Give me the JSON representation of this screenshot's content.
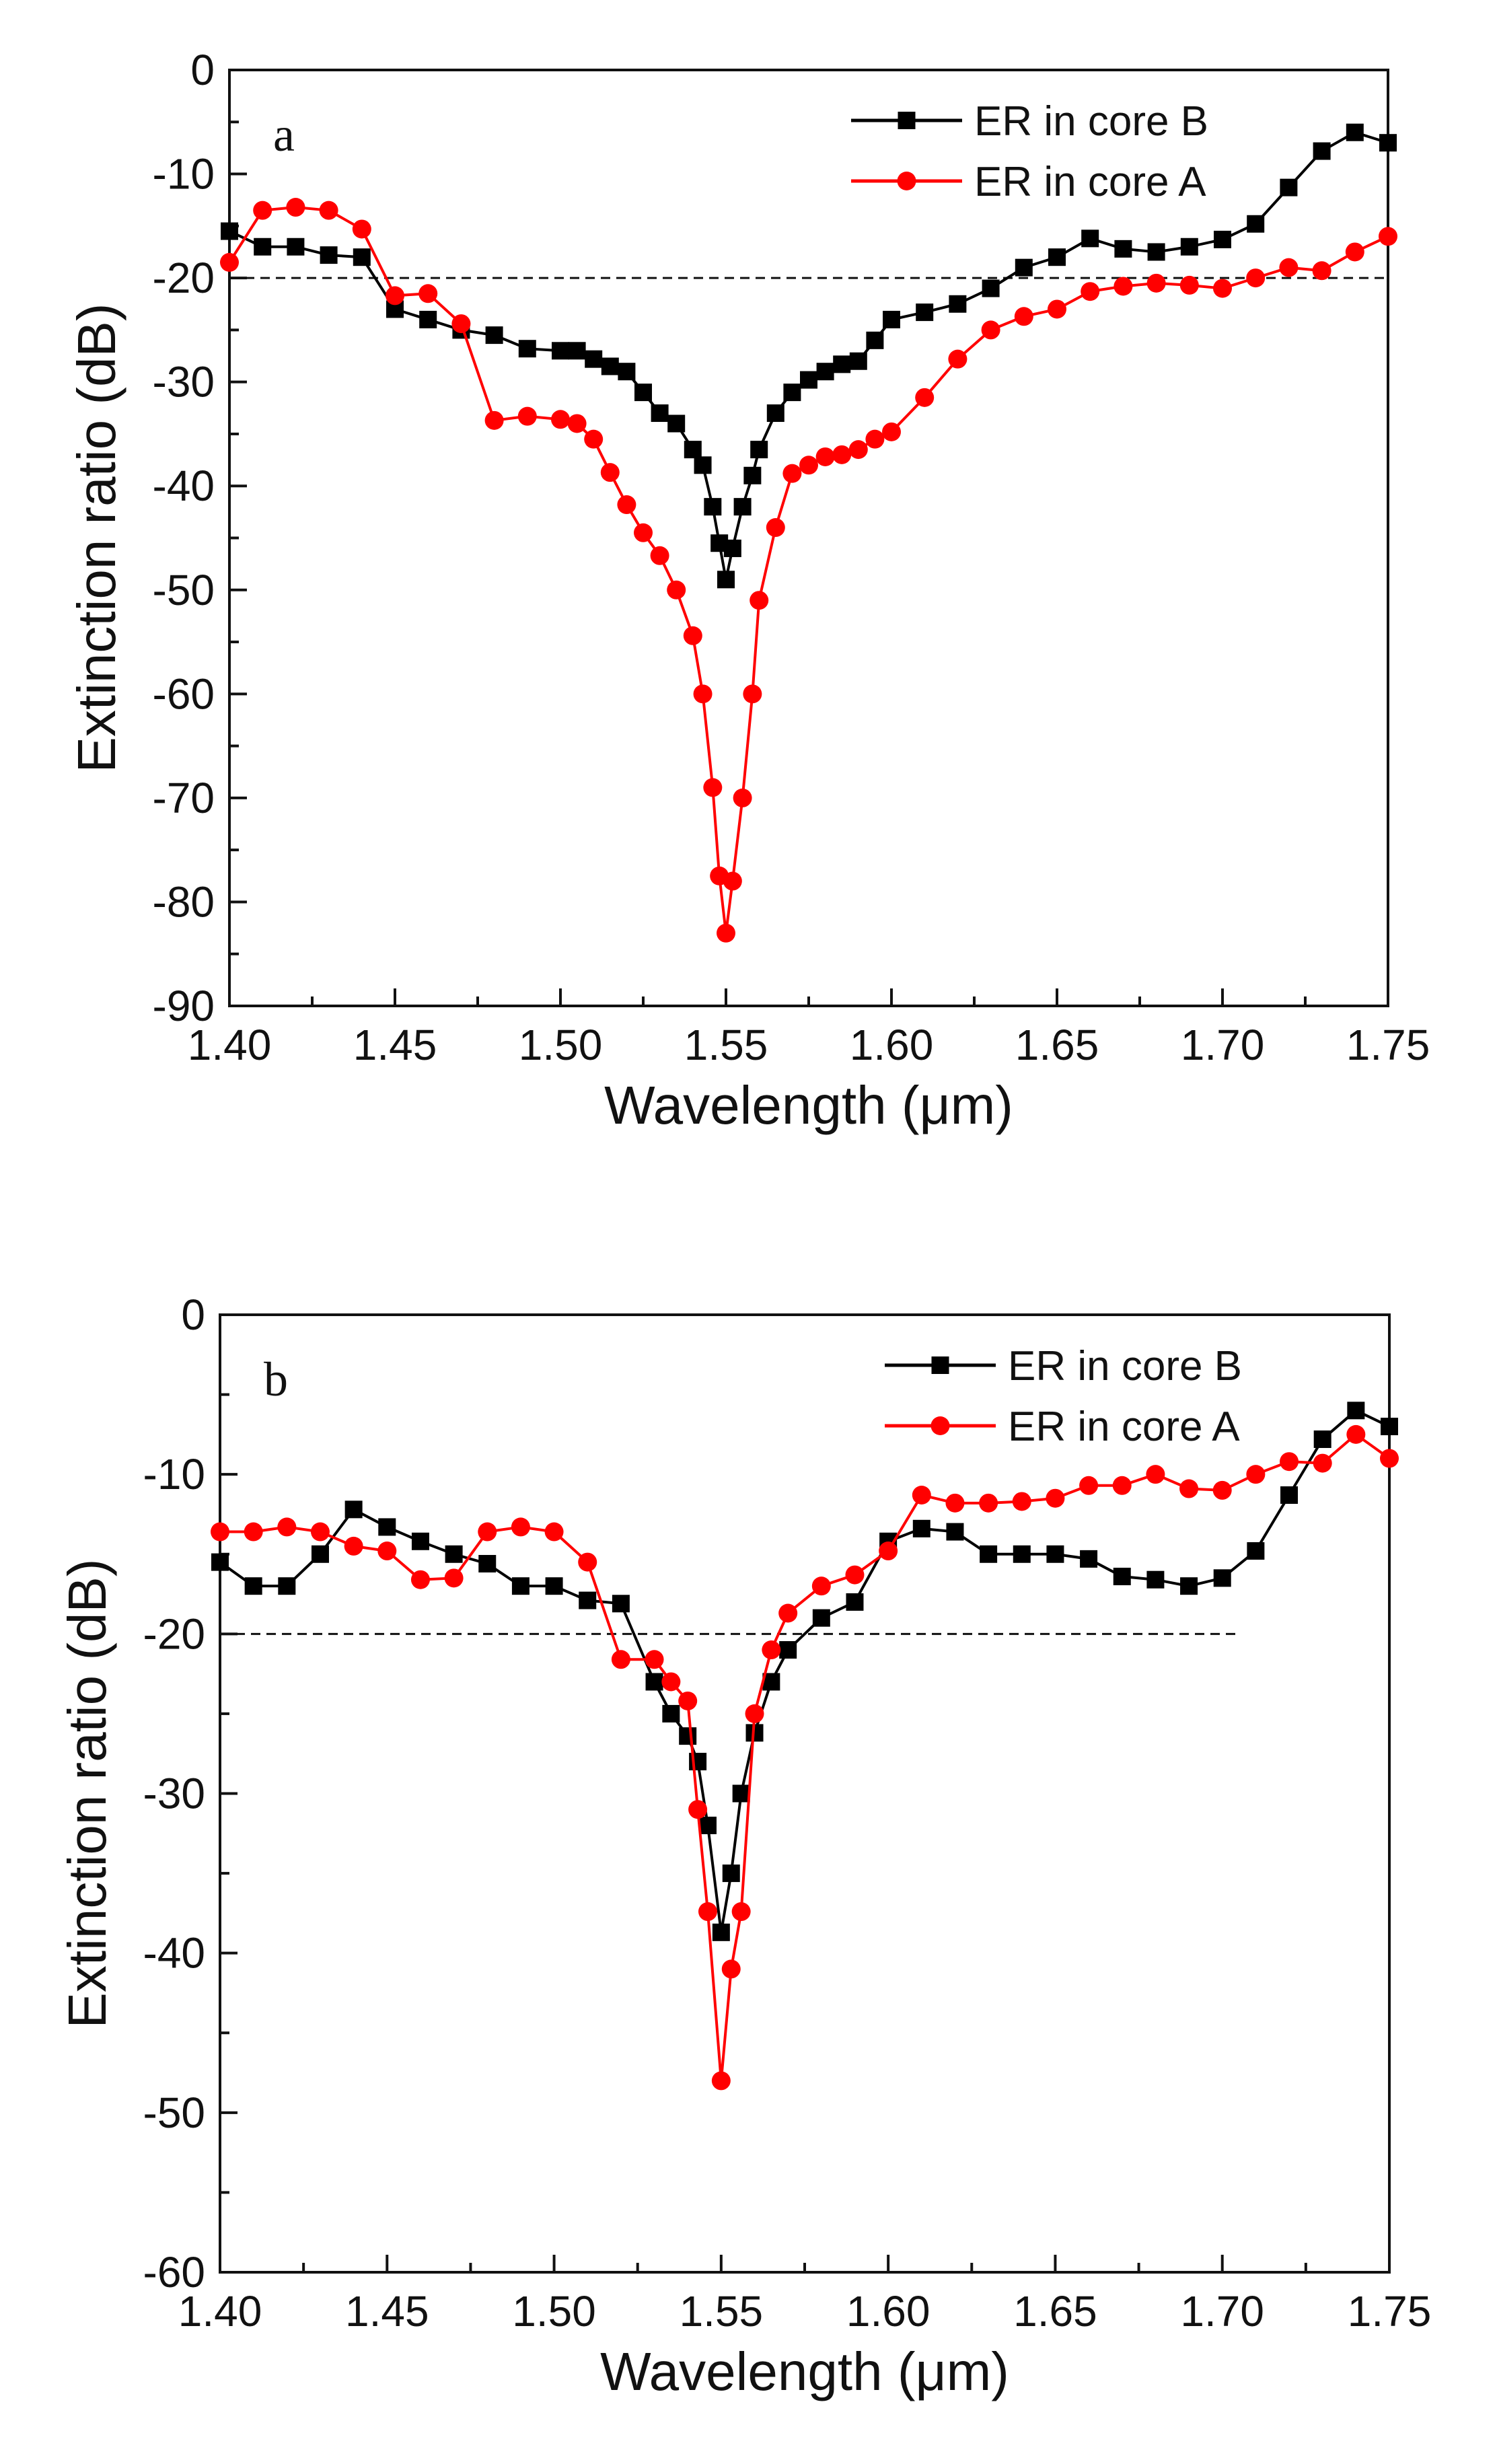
{
  "chart_data": [
    {
      "type": "line",
      "panel_label": "a",
      "xlabel": "Wavelength (μm)",
      "ylabel": "Extinction ratio (dB)",
      "xlim": [
        1.4,
        1.75
      ],
      "ylim": [
        -90,
        0
      ],
      "xticks": [
        "1.40",
        "1.45",
        "1.50",
        "1.55",
        "1.60",
        "1.65",
        "1.70",
        "1.75"
      ],
      "yticks": [
        "0",
        "-10",
        "-20",
        "-30",
        "-40",
        "-50",
        "-60",
        "-70",
        "-80",
        "-90"
      ],
      "grid": false,
      "legend_position": "top-right",
      "reference_line": {
        "y": -20,
        "x_range": [
          1.4,
          1.75
        ],
        "style": "dashed"
      },
      "series": [
        {
          "name": "ER in core B",
          "color": "#000000",
          "marker": "square",
          "x": [
            1.4,
            1.41,
            1.42,
            1.43,
            1.44,
            1.45,
            1.46,
            1.47,
            1.48,
            1.49,
            1.5,
            1.505,
            1.51,
            1.515,
            1.52,
            1.525,
            1.53,
            1.535,
            1.54,
            1.543,
            1.546,
            1.548,
            1.55,
            1.552,
            1.555,
            1.558,
            1.56,
            1.565,
            1.57,
            1.575,
            1.58,
            1.585,
            1.59,
            1.595,
            1.6,
            1.61,
            1.62,
            1.63,
            1.64,
            1.65,
            1.66,
            1.67,
            1.68,
            1.69,
            1.7,
            1.71,
            1.72,
            1.73,
            1.74,
            1.75
          ],
          "y": [
            -15.5,
            -17,
            -17,
            -17.8,
            -18,
            -23,
            -24,
            -25,
            -25.5,
            -26.8,
            -27,
            -27,
            -27.8,
            -28.5,
            -29,
            -31,
            -33,
            -34,
            -36.5,
            -38,
            -42,
            -45.5,
            -49,
            -46,
            -42,
            -39,
            -36.5,
            -33,
            -31,
            -29.8,
            -29,
            -28.3,
            -28,
            -26,
            -24,
            -23.3,
            -22.5,
            -21,
            -19,
            -18,
            -16.2,
            -17.2,
            -17.5,
            -17,
            -16.3,
            -14.8,
            -11.3,
            -7.8,
            -6,
            -7
          ]
        },
        {
          "name": "ER in core A",
          "color": "#ff0000",
          "marker": "circle",
          "x": [
            1.4,
            1.41,
            1.42,
            1.43,
            1.44,
            1.45,
            1.46,
            1.47,
            1.48,
            1.49,
            1.5,
            1.505,
            1.51,
            1.515,
            1.52,
            1.525,
            1.53,
            1.535,
            1.54,
            1.543,
            1.546,
            1.548,
            1.55,
            1.552,
            1.555,
            1.558,
            1.56,
            1.565,
            1.57,
            1.575,
            1.58,
            1.585,
            1.59,
            1.595,
            1.6,
            1.61,
            1.62,
            1.63,
            1.64,
            1.65,
            1.66,
            1.67,
            1.68,
            1.69,
            1.7,
            1.71,
            1.72,
            1.73,
            1.74,
            1.75
          ],
          "y": [
            -18.5,
            -13.5,
            -13.2,
            -13.5,
            -15.3,
            -21.7,
            -21.5,
            -24.4,
            -33.7,
            -33.3,
            -33.6,
            -34,
            -35.5,
            -38.7,
            -41.8,
            -44.5,
            -46.7,
            -50,
            -54.4,
            -60,
            -69,
            -77.5,
            -83,
            -78,
            -70,
            -60,
            -51,
            -44,
            -38.8,
            -38,
            -37.2,
            -37,
            -36.5,
            -35.5,
            -34.8,
            -31.5,
            -27.8,
            -25,
            -23.7,
            -23,
            -21.3,
            -20.8,
            -20.5,
            -20.7,
            -21,
            -20,
            -19,
            -19.3,
            -17.5,
            -16
          ]
        }
      ]
    },
    {
      "type": "line",
      "panel_label": "b",
      "xlabel": "Wavelength (μm)",
      "ylabel": "Extinction ratio (dB)",
      "xlim": [
        1.4,
        1.75
      ],
      "ylim": [
        -60,
        0
      ],
      "xticks": [
        "1.40",
        "1.45",
        "1.50",
        "1.55",
        "1.60",
        "1.65",
        "1.70",
        "1.75"
      ],
      "yticks": [
        "0",
        "-10",
        "-20",
        "-30",
        "-40",
        "-50",
        "-60"
      ],
      "grid": false,
      "legend_position": "top-right",
      "reference_line": {
        "y": -20,
        "x_range": [
          1.4,
          1.705
        ],
        "style": "dashed"
      },
      "series": [
        {
          "name": "ER in core B",
          "color": "#000000",
          "marker": "square",
          "x": [
            1.4,
            1.41,
            1.42,
            1.43,
            1.44,
            1.45,
            1.46,
            1.47,
            1.48,
            1.49,
            1.5,
            1.51,
            1.52,
            1.53,
            1.535,
            1.54,
            1.543,
            1.546,
            1.55,
            1.553,
            1.556,
            1.56,
            1.565,
            1.57,
            1.58,
            1.59,
            1.6,
            1.61,
            1.62,
            1.63,
            1.64,
            1.65,
            1.66,
            1.67,
            1.68,
            1.69,
            1.7,
            1.71,
            1.72,
            1.73,
            1.74,
            1.75
          ],
          "y": [
            -15.5,
            -17,
            -17,
            -15,
            -12.2,
            -13.3,
            -14.2,
            -15,
            -15.6,
            -17,
            -17,
            -17.9,
            -18.1,
            -23,
            -25,
            -26.4,
            -28,
            -32,
            -38.7,
            -35,
            -30,
            -26.2,
            -23,
            -21,
            -19,
            -18,
            -14.2,
            -13.4,
            -13.6,
            -15,
            -15,
            -15,
            -15.3,
            -16.4,
            -16.6,
            -17,
            -16.5,
            -14.8,
            -11.3,
            -7.8,
            -6,
            -7
          ]
        },
        {
          "name": "ER in core A",
          "color": "#ff0000",
          "marker": "circle",
          "x": [
            1.4,
            1.41,
            1.42,
            1.43,
            1.44,
            1.45,
            1.46,
            1.47,
            1.48,
            1.49,
            1.5,
            1.51,
            1.52,
            1.53,
            1.535,
            1.54,
            1.543,
            1.546,
            1.55,
            1.553,
            1.556,
            1.56,
            1.565,
            1.57,
            1.58,
            1.59,
            1.6,
            1.61,
            1.62,
            1.63,
            1.64,
            1.65,
            1.66,
            1.67,
            1.68,
            1.69,
            1.7,
            1.71,
            1.72,
            1.73,
            1.74,
            1.75
          ],
          "y": [
            -13.6,
            -13.6,
            -13.3,
            -13.6,
            -14.5,
            -14.8,
            -16.6,
            -16.5,
            -13.6,
            -13.3,
            -13.6,
            -15.5,
            -21.6,
            -21.6,
            -23,
            -24.2,
            -31,
            -37.4,
            -48,
            -41,
            -37.4,
            -25,
            -21,
            -18.7,
            -17,
            -16.3,
            -14.8,
            -11.3,
            -11.8,
            -11.8,
            -11.7,
            -11.5,
            -10.7,
            -10.7,
            -10,
            -10.9,
            -11,
            -10,
            -9.2,
            -9.3,
            -7.5,
            -9
          ]
        }
      ]
    }
  ]
}
